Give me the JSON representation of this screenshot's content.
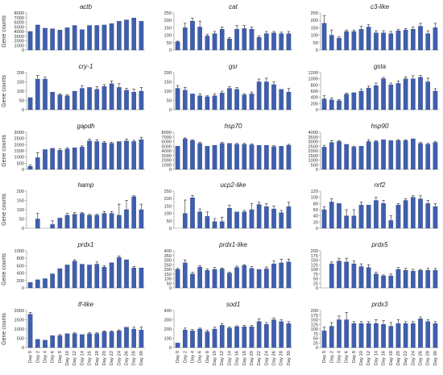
{
  "figure": {
    "y_axis_label": "Gene counts",
    "bar_color": "#3f5fae",
    "bar_stroke": "#1f3570",
    "error_color": "#222222",
    "axis_color": "#888888"
  },
  "chart_data": [
    {
      "type": "bar",
      "title": "actb",
      "ylim": [
        0,
        8000
      ],
      "yticks": [
        0,
        1000,
        2000,
        3000,
        4000,
        5000,
        6000,
        7000,
        8000
      ],
      "categories": [
        "Day 0",
        "Day 2",
        "Day 4",
        "Day 6",
        "Day 8",
        "Day 10",
        "Day 12",
        "Day 14",
        "Day 16",
        "Day 18",
        "Day 20",
        "Day 22",
        "Day 24",
        "Day 26",
        "Day 28",
        "Day 30"
      ],
      "values": [
        4000,
        5400,
        4700,
        4600,
        4300,
        4800,
        5300,
        4400,
        5300,
        5300,
        5400,
        5700,
        6200,
        6500,
        6900,
        6200
      ],
      "errors": [
        0,
        0,
        0,
        0,
        0,
        0,
        0,
        0,
        0,
        0,
        0,
        0,
        0,
        0,
        0,
        0
      ]
    },
    {
      "type": "bar",
      "title": "cat",
      "ylim": [
        0,
        250
      ],
      "yticks": [
        0,
        50,
        100,
        150,
        200,
        250
      ],
      "categories": [
        "Day 0",
        "Day 2",
        "Day 4",
        "Day 6",
        "Day 8",
        "Day 10",
        "Day 12",
        "Day 14",
        "Day 16",
        "Day 18",
        "Day 20",
        "Day 22",
        "Day 24",
        "Day 26",
        "Day 28",
        "Day 30"
      ],
      "values": [
        55,
        150,
        195,
        155,
        95,
        110,
        140,
        75,
        140,
        145,
        140,
        85,
        110,
        115,
        110,
        110
      ],
      "errors": [
        5,
        30,
        20,
        40,
        10,
        15,
        15,
        10,
        25,
        20,
        15,
        10,
        15,
        10,
        10,
        15
      ]
    },
    {
      "type": "bar",
      "title": "c3-like",
      "ylim": [
        0,
        250
      ],
      "yticks": [
        0,
        50,
        100,
        150,
        200,
        250
      ],
      "categories": [
        "Day 0",
        "Day 2",
        "Day 4",
        "Day 6",
        "Day 8",
        "Day 10",
        "Day 12",
        "Day 14",
        "Day 16",
        "Day 18",
        "Day 20",
        "Day 22",
        "Day 24",
        "Day 26",
        "Day 28",
        "Day 30"
      ],
      "values": [
        180,
        100,
        80,
        125,
        125,
        140,
        155,
        115,
        115,
        110,
        130,
        135,
        140,
        160,
        110,
        150
      ],
      "errors": [
        50,
        35,
        10,
        10,
        10,
        20,
        15,
        15,
        15,
        15,
        10,
        10,
        15,
        20,
        20,
        30
      ]
    },
    {
      "type": "bar",
      "title": "cry-1",
      "ylim": [
        0,
        200
      ],
      "yticks": [
        0,
        50,
        100,
        150,
        200
      ],
      "categories": [
        "Day 0",
        "Day 2",
        "Day 4",
        "Day 6",
        "Day 8",
        "Day 10",
        "Day 12",
        "Day 14",
        "Day 16",
        "Day 18",
        "Day 20",
        "Day 22",
        "Day 24",
        "Day 26",
        "Day 28",
        "Day 30"
      ],
      "values": [
        65,
        165,
        165,
        95,
        80,
        75,
        100,
        115,
        120,
        110,
        125,
        140,
        120,
        105,
        95,
        100
      ],
      "errors": [
        0,
        20,
        10,
        0,
        5,
        5,
        0,
        15,
        0,
        15,
        10,
        15,
        20,
        10,
        15,
        20
      ]
    },
    {
      "type": "bar",
      "title": "gsr",
      "ylim": [
        0,
        200
      ],
      "yticks": [
        0,
        50,
        100,
        150,
        200
      ],
      "categories": [
        "Day 0",
        "Day 2",
        "Day 4",
        "Day 6",
        "Day 8",
        "Day 10",
        "Day 12",
        "Day 14",
        "Day 16",
        "Day 18",
        "Day 20",
        "Day 22",
        "Day 24",
        "Day 26",
        "Day 28",
        "Day 30"
      ],
      "values": [
        115,
        105,
        85,
        75,
        70,
        75,
        90,
        115,
        110,
        80,
        85,
        150,
        150,
        135,
        110,
        95
      ],
      "errors": [
        15,
        15,
        0,
        10,
        5,
        10,
        10,
        10,
        10,
        5,
        10,
        15,
        20,
        15,
        0,
        20
      ]
    },
    {
      "type": "bar",
      "title": "gsta",
      "ylim": [
        0,
        1200
      ],
      "yticks": [
        0,
        200,
        400,
        600,
        800,
        1000,
        1200
      ],
      "categories": [
        "Day 0",
        "Day 2",
        "Day 4",
        "Day 6",
        "Day 8",
        "Day 10",
        "Day 12",
        "Day 14",
        "Day 16",
        "Day 18",
        "Day 20",
        "Day 22",
        "Day 24",
        "Day 26",
        "Day 28",
        "Day 30"
      ],
      "values": [
        350,
        320,
        290,
        500,
        550,
        600,
        700,
        780,
        1000,
        800,
        850,
        1000,
        1000,
        1050,
        900,
        600
      ],
      "errors": [
        100,
        60,
        40,
        40,
        0,
        60,
        60,
        80,
        40,
        60,
        80,
        60,
        100,
        60,
        120,
        80
      ]
    },
    {
      "type": "bar",
      "title": "gapdh",
      "ylim": [
        0,
        3000
      ],
      "yticks": [
        0,
        500,
        1000,
        1500,
        2000,
        2500,
        3000
      ],
      "categories": [
        "Day 0",
        "Day 2",
        "Day 4",
        "Day 6",
        "Day 8",
        "Day 10",
        "Day 12",
        "Day 14",
        "Day 16",
        "Day 18",
        "Day 20",
        "Day 22",
        "Day 24",
        "Day 26",
        "Day 28",
        "Day 30"
      ],
      "values": [
        250,
        950,
        1600,
        1700,
        1550,
        1650,
        1750,
        1800,
        2300,
        2250,
        2150,
        2100,
        2250,
        2300,
        2250,
        2400
      ],
      "errors": [
        100,
        400,
        0,
        0,
        100,
        100,
        0,
        100,
        150,
        150,
        100,
        100,
        0,
        150,
        100,
        200
      ]
    },
    {
      "type": "bar",
      "title": "hsp70",
      "ylim": [
        0,
        8000
      ],
      "yticks": [
        0,
        1000,
        2000,
        3000,
        4000,
        5000,
        6000,
        7000,
        8000
      ],
      "categories": [
        "Day 0",
        "Day 2",
        "Day 4",
        "Day 6",
        "Day 8",
        "Day 10",
        "Day 12",
        "Day 14",
        "Day 16",
        "Day 18",
        "Day 20",
        "Day 22",
        "Day 24",
        "Day 26",
        "Day 28",
        "Day 30"
      ],
      "values": [
        5000,
        6600,
        6200,
        5600,
        5000,
        5200,
        5600,
        5600,
        5400,
        5400,
        5300,
        5200,
        5200,
        4900,
        5000,
        5200
      ],
      "errors": [
        0,
        200,
        200,
        200,
        0,
        0,
        200,
        0,
        200,
        200,
        200,
        0,
        0,
        200,
        0,
        200
      ]
    },
    {
      "type": "bar",
      "title": "hsp90",
      "ylim": [
        0,
        4000
      ],
      "yticks": [
        0,
        500,
        1000,
        1500,
        2000,
        2500,
        3000,
        3500,
        4000
      ],
      "categories": [
        "Day 0",
        "Day 2",
        "Day 4",
        "Day 6",
        "Day 8",
        "Day 10",
        "Day 12",
        "Day 14",
        "Day 16",
        "Day 18",
        "Day 20",
        "Day 22",
        "Day 24",
        "Day 26",
        "Day 28",
        "Day 30"
      ],
      "values": [
        2400,
        2900,
        3000,
        2700,
        2400,
        2500,
        3000,
        3000,
        3200,
        3100,
        3100,
        3100,
        3300,
        2800,
        2700,
        2900
      ],
      "errors": [
        200,
        200,
        100,
        0,
        100,
        0,
        200,
        100,
        0,
        0,
        100,
        100,
        0,
        100,
        100,
        100
      ]
    },
    {
      "type": "bar",
      "title": "hamp",
      "ylim": [
        0,
        200
      ],
      "yticks": [
        0,
        50,
        100,
        150,
        200
      ],
      "categories": [
        "Day 0",
        "Day 2",
        "Day 4",
        "Day 6",
        "Day 8",
        "Day 10",
        "Day 12",
        "Day 14",
        "Day 16",
        "Day 18",
        "Day 20",
        "Day 22",
        "Day 24",
        "Day 26",
        "Day 28",
        "Day 30"
      ],
      "values": [
        0,
        50,
        0,
        20,
        55,
        70,
        75,
        80,
        70,
        70,
        80,
        80,
        70,
        100,
        170,
        100
      ],
      "errors": [
        0,
        30,
        0,
        20,
        0,
        10,
        10,
        5,
        5,
        5,
        10,
        10,
        60,
        50,
        5,
        30
      ]
    },
    {
      "type": "bar",
      "title": "ucp2-like",
      "ylim": [
        0,
        250
      ],
      "yticks": [
        0,
        50,
        100,
        150,
        200,
        250
      ],
      "categories": [
        "Day 0",
        "Day 2",
        "Day 4",
        "Day 6",
        "Day 8",
        "Day 10",
        "Day 12",
        "Day 14",
        "Day 16",
        "Day 18",
        "Day 20",
        "Day 22",
        "Day 24",
        "Day 26",
        "Day 28",
        "Day 30"
      ],
      "values": [
        0,
        100,
        205,
        110,
        80,
        45,
        45,
        135,
        110,
        110,
        125,
        160,
        145,
        130,
        105,
        145
      ],
      "errors": [
        0,
        90,
        15,
        20,
        30,
        20,
        30,
        20,
        0,
        10,
        40,
        15,
        20,
        20,
        15,
        30
      ]
    },
    {
      "type": "bar",
      "title": "nrf2",
      "ylim": [
        0,
        120
      ],
      "yticks": [
        0,
        20,
        40,
        60,
        80,
        100,
        120
      ],
      "categories": [
        "Day 0",
        "Day 2",
        "Day 4",
        "Day 6",
        "Day 8",
        "Day 10",
        "Day 12",
        "Day 14",
        "Day 16",
        "Day 18",
        "Day 20",
        "Day 22",
        "Day 24",
        "Day 26",
        "Day 28",
        "Day 30"
      ],
      "values": [
        60,
        85,
        80,
        40,
        40,
        75,
        75,
        90,
        80,
        25,
        75,
        90,
        100,
        95,
        80,
        70
      ],
      "errors": [
        10,
        10,
        0,
        20,
        20,
        10,
        0,
        10,
        10,
        15,
        5,
        5,
        5,
        10,
        10,
        10
      ]
    },
    {
      "type": "bar",
      "title": "prdx1",
      "ylim": [
        0,
        1000
      ],
      "yticks": [
        0,
        200,
        400,
        600,
        800,
        1000
      ],
      "categories": [
        "Day 0",
        "Day 2",
        "Day 4",
        "Day 6",
        "Day 8",
        "Day 10",
        "Day 12",
        "Day 14",
        "Day 16",
        "Day 18",
        "Day 20",
        "Day 22",
        "Day 24",
        "Day 26",
        "Day 28",
        "Day 30"
      ],
      "values": [
        150,
        220,
        250,
        380,
        520,
        620,
        720,
        640,
        620,
        640,
        560,
        680,
        820,
        760,
        540,
        540
      ],
      "errors": [
        0,
        0,
        0,
        0,
        0,
        0,
        40,
        0,
        0,
        60,
        40,
        0,
        40,
        0,
        40,
        0
      ]
    },
    {
      "type": "bar",
      "title": "prdx1-like",
      "ylim": [
        0,
        400
      ],
      "yticks": [
        0,
        50,
        100,
        150,
        200,
        250,
        300,
        350,
        400
      ],
      "categories": [
        "Day 0",
        "Day 2",
        "Day 4",
        "Day 6",
        "Day 8",
        "Day 10",
        "Day 12",
        "Day 14",
        "Day 16",
        "Day 18",
        "Day 20",
        "Day 22",
        "Day 24",
        "Day 26",
        "Day 28",
        "Day 30"
      ],
      "values": [
        200,
        270,
        150,
        225,
        190,
        200,
        205,
        160,
        220,
        240,
        210,
        200,
        205,
        260,
        270,
        280
      ],
      "errors": [
        10,
        30,
        20,
        15,
        15,
        20,
        10,
        10,
        15,
        10,
        20,
        0,
        20,
        30,
        40,
        30
      ]
    },
    {
      "type": "bar",
      "title": "prdx5",
      "ylim": [
        0,
        200
      ],
      "yticks": [
        0,
        25,
        50,
        75,
        100,
        125,
        150,
        175,
        200
      ],
      "categories": [
        "Day 0",
        "Day 2",
        "Day 4",
        "Day 6",
        "Day 8",
        "Day 10",
        "Day 12",
        "Day 14",
        "Day 16",
        "Day 18",
        "Day 20",
        "Day 22",
        "Day 24",
        "Day 26",
        "Day 28",
        "Day 30"
      ],
      "values": [
        0,
        130,
        145,
        140,
        130,
        115,
        110,
        75,
        65,
        65,
        100,
        95,
        90,
        95,
        95,
        95
      ],
      "errors": [
        0,
        10,
        15,
        20,
        15,
        15,
        15,
        10,
        5,
        10,
        10,
        10,
        10,
        5,
        10,
        10
      ]
    },
    {
      "type": "bar",
      "title": "tf-like",
      "ylim": [
        0,
        2000
      ],
      "yticks": [
        0,
        500,
        1000,
        1500,
        2000
      ],
      "categories": [
        "Day 0",
        "Day 2",
        "Day 4",
        "Day 6",
        "Day 8",
        "Day 10",
        "Day 12",
        "Day 14",
        "Day 16",
        "Day 18",
        "Day 20",
        "Day 22",
        "Day 24",
        "Day 26",
        "Day 28",
        "Day 30"
      ],
      "values": [
        1800,
        450,
        400,
        650,
        650,
        750,
        750,
        700,
        750,
        750,
        850,
        850,
        900,
        1100,
        1000,
        950
      ],
      "errors": [
        100,
        0,
        0,
        0,
        50,
        0,
        50,
        0,
        50,
        50,
        50,
        50,
        50,
        0,
        100,
        150
      ]
    },
    {
      "type": "bar",
      "title": "sod1",
      "ylim": [
        0,
        400
      ],
      "yticks": [
        0,
        100,
        200,
        300,
        400
      ],
      "categories": [
        "Day 0",
        "Day 2",
        "Day 4",
        "Day 6",
        "Day 8",
        "Day 10",
        "Day 12",
        "Day 14",
        "Day 16",
        "Day 18",
        "Day 20",
        "Day 22",
        "Day 24",
        "Day 26",
        "Day 28",
        "Day 30"
      ],
      "values": [
        50,
        190,
        180,
        200,
        170,
        200,
        240,
        210,
        225,
        225,
        225,
        280,
        250,
        300,
        280,
        260
      ],
      "errors": [
        0,
        20,
        15,
        10,
        15,
        20,
        20,
        10,
        10,
        15,
        15,
        30,
        20,
        20,
        20,
        20
      ]
    },
    {
      "type": "bar",
      "title": "prdx3",
      "ylim": [
        0,
        200
      ],
      "yticks": [
        0,
        25,
        50,
        75,
        100,
        125,
        150,
        175,
        200
      ],
      "categories": [
        "Day 0",
        "Day 2",
        "Day 4",
        "Day 6",
        "Day 8",
        "Day 10",
        "Day 12",
        "Day 14",
        "Day 16",
        "Day 18",
        "Day 20",
        "Day 22",
        "Day 24",
        "Day 26",
        "Day 28",
        "Day 30"
      ],
      "values": [
        90,
        115,
        150,
        150,
        130,
        130,
        130,
        130,
        125,
        115,
        130,
        130,
        130,
        155,
        140,
        130
      ],
      "errors": [
        20,
        20,
        20,
        40,
        10,
        10,
        10,
        20,
        20,
        20,
        20,
        10,
        10,
        10,
        10,
        10
      ]
    }
  ]
}
